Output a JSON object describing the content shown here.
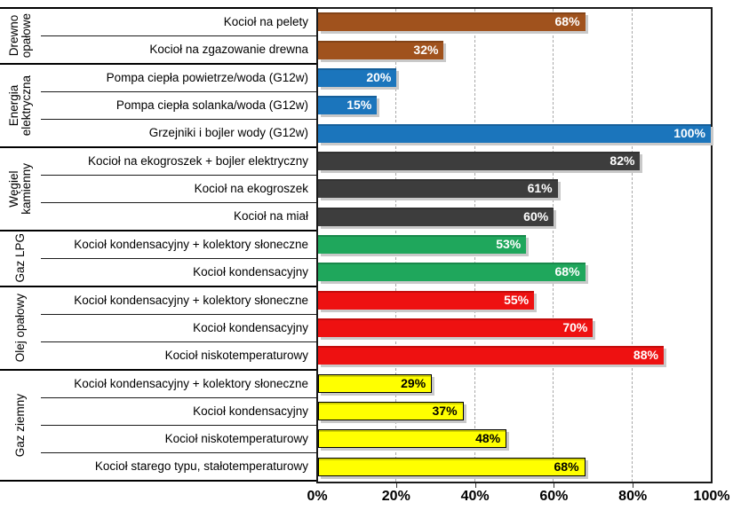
{
  "chart_data": {
    "type": "bar",
    "orientation": "horizontal",
    "title": "",
    "xlabel": "",
    "ylabel": "",
    "xlim": [
      0,
      100
    ],
    "unit": "%",
    "grid": "vertical-dashed",
    "grid_percents": [
      20,
      40,
      60,
      80
    ],
    "x_ticks": [
      {
        "label": "0%",
        "value": 0
      },
      {
        "label": "20%",
        "value": 20
      },
      {
        "label": "40%",
        "value": 40
      },
      {
        "label": "60%",
        "value": 60
      },
      {
        "label": "80%",
        "value": 80
      },
      {
        "label": "100%",
        "value": 100
      }
    ],
    "groups": [
      {
        "name": "Drewno\nopałowe",
        "color": "#A0521D",
        "value_label_color": "#ffffff",
        "bar_border": null,
        "bars": [
          {
            "label": "Kocioł na pelety",
            "value": 68,
            "display": "68%"
          },
          {
            "label": "Kocioł na zgazowanie drewna",
            "value": 32,
            "display": "32%"
          }
        ]
      },
      {
        "name": "Energia\nelektryczna",
        "color": "#1B75BC",
        "value_label_color": "#ffffff",
        "bar_border": null,
        "bars": [
          {
            "label": "Pompa ciepła powietrze/woda (G12w)",
            "value": 20,
            "display": "20%"
          },
          {
            "label": "Pompa ciepła solanka/woda (G12w)",
            "value": 15,
            "display": "15%"
          },
          {
            "label": "Grzejniki i bojler wody (G12w)",
            "value": 100,
            "display": "100%"
          }
        ]
      },
      {
        "name": "Węgiel\nkamienny",
        "color": "#3D3D3D",
        "value_label_color": "#ffffff",
        "bar_border": null,
        "bars": [
          {
            "label": "Kocioł na ekogroszek + bojler elektryczny",
            "value": 82,
            "display": "82%"
          },
          {
            "label": "Kocioł na ekogroszek",
            "value": 61,
            "display": "61%"
          },
          {
            "label": "Kocioł na miał",
            "value": 60,
            "display": "60%"
          }
        ]
      },
      {
        "name": "Gaz LPG",
        "color": "#1FA75C",
        "value_label_color": "#ffffff",
        "bar_border": null,
        "bars": [
          {
            "label": "Kocioł kondensacyjny + kolektory słoneczne",
            "value": 53,
            "display": "53%"
          },
          {
            "label": "Kocioł kondensacyjny",
            "value": 68,
            "display": "68%"
          }
        ]
      },
      {
        "name": "Olej opałowy",
        "color": "#EE1111",
        "value_label_color": "#ffffff",
        "bar_border": null,
        "bars": [
          {
            "label": "Kocioł kondensacyjny + kolektory słoneczne",
            "value": 55,
            "display": "55%"
          },
          {
            "label": "Kocioł kondensacyjny",
            "value": 70,
            "display": "70%"
          },
          {
            "label": "Kocioł niskotemperaturowy",
            "value": 88,
            "display": "88%"
          }
        ]
      },
      {
        "name": "Gaz ziemny",
        "color": "#FFFF00",
        "value_label_color": "#000000",
        "bar_border": "#000000",
        "bars": [
          {
            "label": "Kocioł kondensacyjny + kolektory słoneczne",
            "value": 29,
            "display": "29%"
          },
          {
            "label": "Kocioł kondensacyjny",
            "value": 37,
            "display": "37%"
          },
          {
            "label": "Kocioł niskotemperaturowy",
            "value": 48,
            "display": "48%"
          },
          {
            "label": "Kocioł starego typu, stałotemperaturowy",
            "value": 68,
            "display": "68%"
          }
        ]
      }
    ],
    "colors": {
      "plot_border": "#1a1a1a",
      "gridline": "#a9a9a9",
      "bar_shadow": "#c9c9c9",
      "row_separator": "#1a1a1a",
      "group_separator": "#000000"
    }
  }
}
